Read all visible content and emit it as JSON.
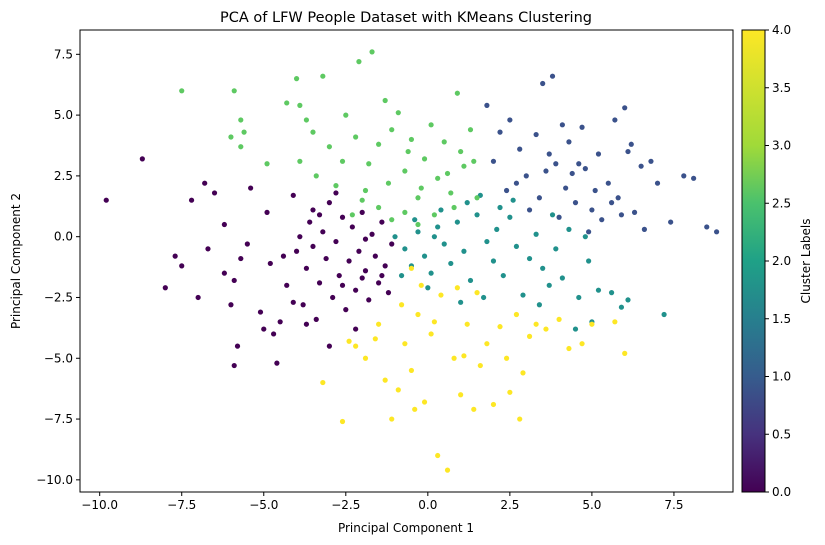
{
  "chart_data": {
    "type": "scatter",
    "title": "PCA of LFW People Dataset with KMeans Clustering",
    "xlabel": "Principal Component 1",
    "ylabel": "Principal Component 2",
    "xlim": [
      -10.6,
      9.3
    ],
    "ylim": [
      -10.5,
      8.5
    ],
    "xticks": [
      -10.0,
      -7.5,
      -5.0,
      -2.5,
      0.0,
      2.5,
      5.0,
      7.5
    ],
    "xtick_labels": [
      "−10.0",
      "−7.5",
      "−5.0",
      "−2.5",
      "0.0",
      "2.5",
      "5.0",
      "7.5"
    ],
    "yticks": [
      -10.0,
      -7.5,
      -5.0,
      -2.5,
      0.0,
      2.5,
      5.0,
      7.5
    ],
    "ytick_labels": [
      "−10.0",
      "−7.5",
      "−5.0",
      "−2.5",
      "0.0",
      "2.5",
      "5.0",
      "7.5"
    ],
    "grid": false,
    "colorbar": {
      "label": "Cluster Labels",
      "min": 0.0,
      "max": 4.0,
      "ticks": [
        0.0,
        0.5,
        1.0,
        1.5,
        2.0,
        2.5,
        3.0,
        3.5,
        4.0
      ],
      "tick_labels": [
        "0.0",
        "0.5",
        "1.0",
        "1.5",
        "2.0",
        "2.5",
        "3.0",
        "3.5",
        "4.0"
      ],
      "colormap": "viridis"
    },
    "cluster_colors": {
      "0": "#440154",
      "1": "#3b528b",
      "2": "#21918c",
      "3": "#5ec962",
      "4": "#fde725"
    },
    "series": [
      {
        "cluster": 0,
        "points": [
          [
            -9.8,
            1.5
          ],
          [
            -8.7,
            3.2
          ],
          [
            -8.0,
            -2.1
          ],
          [
            -7.7,
            -0.8
          ],
          [
            -7.5,
            -1.2
          ],
          [
            -7.0,
            -2.5
          ],
          [
            -7.2,
            1.5
          ],
          [
            -6.8,
            2.2
          ],
          [
            -6.7,
            -0.5
          ],
          [
            -6.5,
            1.8
          ],
          [
            -6.2,
            0.5
          ],
          [
            -6.0,
            -2.8
          ],
          [
            -5.9,
            -1.8
          ],
          [
            -5.8,
            -4.5
          ],
          [
            -5.9,
            -5.3
          ],
          [
            -5.5,
            -0.3
          ],
          [
            -5.4,
            2.0
          ],
          [
            -5.1,
            -3.1
          ],
          [
            -5.0,
            -3.8
          ],
          [
            -4.8,
            -1.1
          ],
          [
            -4.7,
            -4.0
          ],
          [
            -4.5,
            -3.5
          ],
          [
            -4.3,
            -2.0
          ],
          [
            -4.1,
            1.7
          ],
          [
            -4.0,
            -0.6
          ],
          [
            -3.8,
            -2.8
          ],
          [
            -3.7,
            -1.3
          ],
          [
            -3.6,
            0.6
          ],
          [
            -3.5,
            1.1
          ],
          [
            -3.4,
            -3.4
          ],
          [
            -3.3,
            -1.9
          ],
          [
            -3.2,
            0.2
          ],
          [
            -3.1,
            -0.9
          ],
          [
            -3.0,
            1.4
          ],
          [
            -2.9,
            -2.5
          ],
          [
            -2.8,
            -0.2
          ],
          [
            -2.7,
            -1.6
          ],
          [
            -2.6,
            0.8
          ],
          [
            -2.5,
            -3.0
          ],
          [
            -2.4,
            -1.0
          ],
          [
            -2.3,
            0.4
          ],
          [
            -2.2,
            -2.2
          ],
          [
            -2.1,
            -0.6
          ],
          [
            -2.0,
            1.0
          ],
          [
            -1.9,
            -1.4
          ],
          [
            -1.8,
            -2.6
          ],
          [
            -1.7,
            0.1
          ],
          [
            -1.6,
            -0.8
          ],
          [
            -1.5,
            -1.9
          ],
          [
            -1.4,
            0.6
          ],
          [
            -1.3,
            -1.2
          ],
          [
            -1.2,
            -2.3
          ],
          [
            -1.1,
            -0.3
          ],
          [
            -3.0,
            -4.5
          ],
          [
            -3.9,
            0.0
          ],
          [
            -4.4,
            -0.8
          ],
          [
            -5.7,
            -0.9
          ],
          [
            -6.2,
            -1.5
          ],
          [
            -4.9,
            1.0
          ],
          [
            -2.2,
            -3.8
          ],
          [
            -1.9,
            -0.1
          ],
          [
            -3.7,
            -3.6
          ],
          [
            -4.6,
            -5.2
          ],
          [
            -2.6,
            -2.0
          ],
          [
            -3.3,
            0.9
          ],
          [
            -2.0,
            -1.7
          ],
          [
            -1.4,
            -1.6
          ],
          [
            -2.8,
            1.8
          ],
          [
            -3.5,
            -0.4
          ],
          [
            -4.1,
            -2.7
          ]
        ]
      },
      {
        "cluster": 1,
        "points": [
          [
            1.8,
            5.4
          ],
          [
            2.2,
            4.3
          ],
          [
            2.5,
            4.8
          ],
          [
            2.8,
            3.6
          ],
          [
            3.0,
            2.5
          ],
          [
            3.3,
            4.2
          ],
          [
            3.5,
            6.3
          ],
          [
            3.8,
            6.6
          ],
          [
            3.9,
            3.0
          ],
          [
            4.2,
            2.0
          ],
          [
            4.3,
            3.9
          ],
          [
            4.5,
            1.4
          ],
          [
            4.7,
            4.5
          ],
          [
            4.8,
            2.8
          ],
          [
            5.0,
            1.1
          ],
          [
            5.2,
            3.4
          ],
          [
            5.3,
            0.7
          ],
          [
            5.5,
            2.2
          ],
          [
            5.7,
            4.8
          ],
          [
            5.8,
            1.6
          ],
          [
            6.0,
            5.3
          ],
          [
            6.1,
            3.5
          ],
          [
            6.3,
            1.0
          ],
          [
            6.5,
            2.9
          ],
          [
            6.6,
            0.3
          ],
          [
            7.0,
            2.2
          ],
          [
            7.4,
            0.6
          ],
          [
            7.8,
            2.5
          ],
          [
            8.1,
            2.4
          ],
          [
            8.5,
            0.4
          ],
          [
            8.8,
            0.2
          ],
          [
            3.4,
            1.6
          ],
          [
            3.7,
            3.4
          ],
          [
            4.0,
            0.8
          ],
          [
            4.4,
            2.6
          ],
          [
            4.9,
            0.2
          ],
          [
            5.6,
            1.4
          ],
          [
            6.2,
            3.8
          ],
          [
            2.0,
            3.1
          ],
          [
            2.7,
            2.2
          ],
          [
            3.1,
            1.1
          ],
          [
            4.6,
            3.0
          ],
          [
            5.1,
            1.9
          ],
          [
            5.9,
            0.9
          ],
          [
            6.8,
            3.1
          ],
          [
            2.4,
            1.9
          ],
          [
            3.6,
            2.7
          ],
          [
            4.1,
            4.6
          ]
        ]
      },
      {
        "cluster": 2,
        "points": [
          [
            -1.0,
            0.0
          ],
          [
            -0.7,
            -0.5
          ],
          [
            -0.5,
            -1.2
          ],
          [
            -0.3,
            0.2
          ],
          [
            -0.1,
            -0.8
          ],
          [
            0.1,
            -1.5
          ],
          [
            0.3,
            0.4
          ],
          [
            0.5,
            -0.3
          ],
          [
            0.7,
            -1.1
          ],
          [
            0.9,
            0.6
          ],
          [
            1.1,
            -0.6
          ],
          [
            1.3,
            -1.8
          ],
          [
            1.5,
            0.9
          ],
          [
            1.6,
            1.7
          ],
          [
            1.8,
            -0.2
          ],
          [
            2.0,
            -1.0
          ],
          [
            2.1,
            0.3
          ],
          [
            2.3,
            -1.6
          ],
          [
            2.5,
            0.8
          ],
          [
            2.7,
            -0.4
          ],
          [
            2.9,
            -2.4
          ],
          [
            3.1,
            -0.9
          ],
          [
            3.3,
            0.1
          ],
          [
            3.5,
            -1.3
          ],
          [
            3.7,
            -2.0
          ],
          [
            3.9,
            -0.5
          ],
          [
            4.1,
            -1.7
          ],
          [
            4.3,
            0.3
          ],
          [
            4.6,
            -2.5
          ],
          [
            4.9,
            -1.0
          ],
          [
            5.2,
            -2.2
          ],
          [
            5.6,
            -2.3
          ],
          [
            5.9,
            -2.9
          ],
          [
            6.1,
            -2.6
          ],
          [
            7.2,
            -3.2
          ],
          [
            5.0,
            -3.5
          ],
          [
            4.5,
            -3.8
          ],
          [
            1.2,
            1.4
          ],
          [
            0.4,
            1.1
          ],
          [
            -0.4,
            0.7
          ],
          [
            0.0,
            -2.1
          ],
          [
            1.7,
            -2.5
          ],
          [
            2.6,
            1.5
          ],
          [
            3.4,
            -2.8
          ],
          [
            4.8,
            0.0
          ],
          [
            1.0,
            -2.7
          ],
          [
            0.2,
            0.0
          ],
          [
            -0.8,
            -1.6
          ],
          [
            2.2,
            1.2
          ],
          [
            3.8,
            0.9
          ]
        ]
      },
      {
        "cluster": 3,
        "points": [
          [
            -7.5,
            6.0
          ],
          [
            -5.9,
            6.0
          ],
          [
            -5.7,
            4.8
          ],
          [
            -5.7,
            3.7
          ],
          [
            -5.6,
            4.3
          ],
          [
            -6.0,
            4.1
          ],
          [
            -4.9,
            3.0
          ],
          [
            -4.3,
            5.5
          ],
          [
            -4.0,
            6.5
          ],
          [
            -3.9,
            5.4
          ],
          [
            -3.7,
            4.8
          ],
          [
            -3.5,
            4.3
          ],
          [
            -3.2,
            6.6
          ],
          [
            -3.0,
            3.7
          ],
          [
            -2.8,
            2.1
          ],
          [
            -2.5,
            5.0
          ],
          [
            -2.1,
            7.2
          ],
          [
            -1.7,
            7.6
          ],
          [
            -1.5,
            3.8
          ],
          [
            -1.3,
            5.6
          ],
          [
            -1.1,
            4.4
          ],
          [
            -0.9,
            5.1
          ],
          [
            -0.7,
            2.7
          ],
          [
            -0.5,
            4.0
          ],
          [
            -0.3,
            1.6
          ],
          [
            -0.1,
            3.2
          ],
          [
            0.1,
            4.6
          ],
          [
            0.3,
            2.4
          ],
          [
            0.5,
            3.9
          ],
          [
            0.7,
            1.8
          ],
          [
            0.9,
            5.9
          ],
          [
            1.1,
            2.9
          ],
          [
            1.3,
            4.4
          ],
          [
            1.5,
            1.6
          ],
          [
            -2.3,
            0.9
          ],
          [
            -1.9,
            1.9
          ],
          [
            -1.5,
            1.2
          ],
          [
            -1.1,
            0.7
          ],
          [
            -0.7,
            1.0
          ],
          [
            -0.3,
            0.5
          ],
          [
            0.2,
            0.9
          ],
          [
            -2.6,
            3.1
          ],
          [
            -3.4,
            2.5
          ],
          [
            -2.2,
            4.1
          ],
          [
            -1.2,
            2.2
          ],
          [
            0.6,
            2.6
          ],
          [
            1.0,
            3.5
          ],
          [
            -0.6,
            3.5
          ],
          [
            -1.8,
            3.0
          ],
          [
            -3.9,
            3.1
          ],
          [
            1.4,
            3.1
          ],
          [
            -2.0,
            1.5
          ],
          [
            -0.2,
            2.0
          ],
          [
            0.8,
            1.2
          ]
        ]
      },
      {
        "cluster": 4,
        "points": [
          [
            -2.6,
            -7.6
          ],
          [
            -2.4,
            -4.3
          ],
          [
            -2.2,
            -4.5
          ],
          [
            -1.9,
            -5.0
          ],
          [
            -1.6,
            -4.2
          ],
          [
            -1.3,
            -5.9
          ],
          [
            -1.1,
            -7.5
          ],
          [
            -0.9,
            -6.3
          ],
          [
            -0.7,
            -4.4
          ],
          [
            -0.5,
            -5.5
          ],
          [
            -0.3,
            -3.2
          ],
          [
            -0.1,
            -6.8
          ],
          [
            0.1,
            -4.0
          ],
          [
            0.3,
            -9.0
          ],
          [
            0.6,
            -9.6
          ],
          [
            0.8,
            -5.0
          ],
          [
            1.0,
            -6.5
          ],
          [
            1.2,
            -3.6
          ],
          [
            1.4,
            -7.1
          ],
          [
            1.6,
            -5.3
          ],
          [
            1.8,
            -4.4
          ],
          [
            2.0,
            -6.9
          ],
          [
            2.2,
            -3.7
          ],
          [
            2.5,
            -6.4
          ],
          [
            2.7,
            -3.2
          ],
          [
            2.9,
            -5.6
          ],
          [
            3.1,
            -4.1
          ],
          [
            3.3,
            -3.6
          ],
          [
            3.6,
            -3.8
          ],
          [
            4.0,
            -3.4
          ],
          [
            4.3,
            -4.6
          ],
          [
            4.7,
            -4.4
          ],
          [
            5.0,
            -3.6
          ],
          [
            5.7,
            -3.5
          ],
          [
            6.0,
            -4.8
          ],
          [
            -3.2,
            -6.0
          ],
          [
            -0.5,
            -1.3
          ],
          [
            -0.2,
            -2.0
          ],
          [
            0.4,
            -2.4
          ],
          [
            0.9,
            -2.1
          ],
          [
            1.5,
            -2.3
          ],
          [
            -0.8,
            -2.8
          ],
          [
            0.2,
            -3.5
          ],
          [
            2.4,
            -5.0
          ],
          [
            -1.5,
            -3.6
          ],
          [
            1.1,
            -4.9
          ],
          [
            -0.4,
            -7.1
          ],
          [
            2.8,
            -7.5
          ]
        ]
      }
    ]
  }
}
